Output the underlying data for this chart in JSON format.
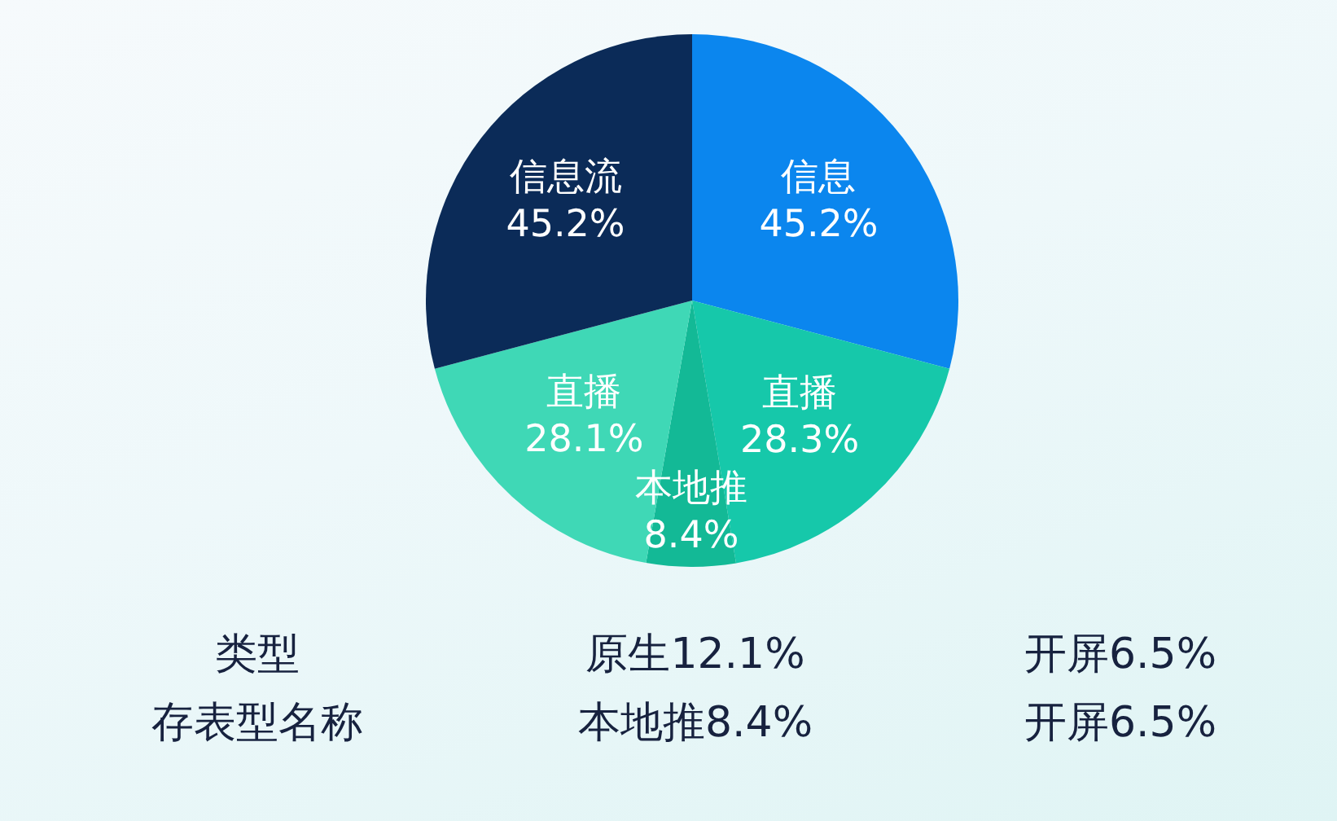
{
  "chart_data": {
    "type": "pie",
    "categories": [
      "信息",
      "直播",
      "本地推",
      "直播",
      "信息流"
    ],
    "values": [
      45.2,
      28.3,
      8.4,
      28.1,
      45.2
    ],
    "colors": [
      "#0b86ee",
      "#16c8aa",
      "#13b996",
      "#3fd8b6",
      "#0b2b58"
    ],
    "value_labels": [
      "45.2%",
      "28.3%",
      "8.4%",
      "28.1%",
      "45.2%"
    ],
    "annotations": [
      "类型",
      "原生12.1%",
      "开屏6.5%",
      "存表型名称",
      "本地推8.4%",
      "开屏6.5%"
    ]
  }
}
